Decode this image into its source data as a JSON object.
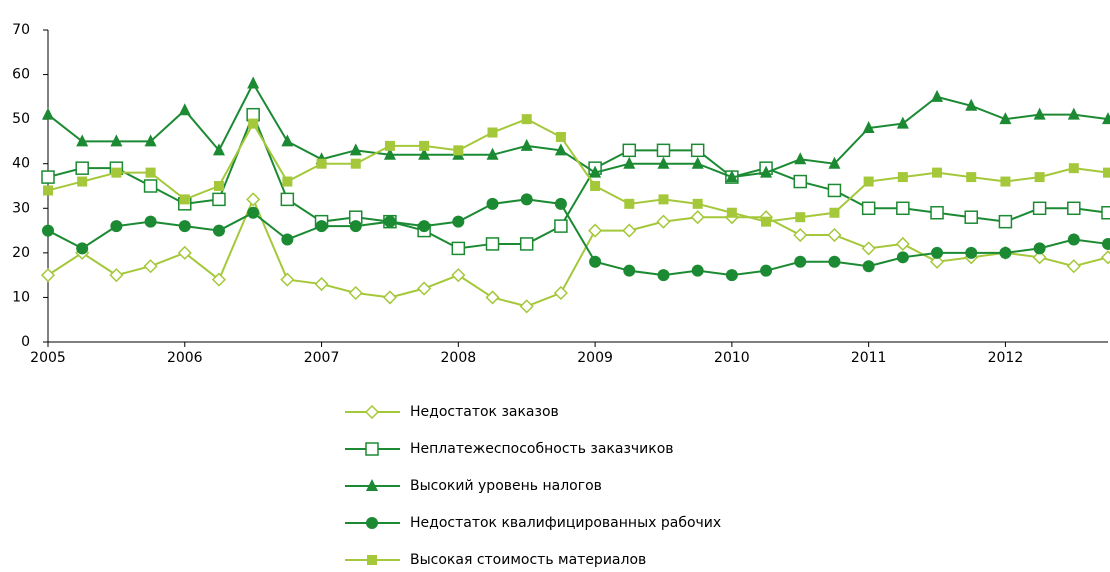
{
  "chart_data": {
    "type": "line",
    "x": [
      2005,
      2005.25,
      2005.5,
      2005.75,
      2006,
      2006.25,
      2006.5,
      2006.75,
      2007,
      2007.25,
      2007.5,
      2007.75,
      2008,
      2008.25,
      2008.5,
      2008.75,
      2009,
      2009.25,
      2009.5,
      2009.75,
      2010,
      2010.25,
      2010.5,
      2010.75,
      2011,
      2011.25,
      2011.5,
      2011.75,
      2012,
      2012.25,
      2012.5,
      2012.75
    ],
    "series": [
      {
        "name": "Недостаток заказов",
        "color": "#a4c83a",
        "marker": "diamond-open",
        "values": [
          15,
          20,
          15,
          17,
          20,
          14,
          32,
          14,
          13,
          11,
          10,
          12,
          15,
          10,
          8,
          11,
          25,
          25,
          27,
          28,
          28,
          28,
          24,
          24,
          21,
          22,
          18,
          19,
          20,
          19,
          17,
          19
        ]
      },
      {
        "name": "Неплатежеспособность заказчиков",
        "color": "#1b8a32",
        "marker": "square-open",
        "values": [
          37,
          39,
          39,
          35,
          31,
          32,
          51,
          32,
          27,
          28,
          27,
          25,
          21,
          22,
          22,
          26,
          39,
          43,
          43,
          43,
          37,
          39,
          36,
          34,
          30,
          30,
          29,
          28,
          27,
          30,
          30,
          29
        ]
      },
      {
        "name": "Высокий уровень налогов",
        "color": "#1b8a32",
        "marker": "triangle",
        "values": [
          51,
          45,
          45,
          45,
          52,
          43,
          58,
          45,
          41,
          43,
          42,
          42,
          42,
          42,
          44,
          43,
          38,
          40,
          40,
          40,
          37,
          38,
          41,
          40,
          48,
          49,
          55,
          53,
          50,
          51,
          51,
          50
        ]
      },
      {
        "name": "Недостаток квалифицированных рабочих",
        "color": "#1b8a32",
        "marker": "circle",
        "values": [
          25,
          21,
          26,
          27,
          26,
          25,
          29,
          23,
          26,
          26,
          27,
          26,
          27,
          31,
          32,
          31,
          18,
          16,
          15,
          16,
          15,
          16,
          18,
          18,
          17,
          19,
          20,
          20,
          20,
          21,
          23,
          22
        ]
      },
      {
        "name": "Высокая стоимость материалов",
        "color": "#a4c83a",
        "marker": "square",
        "values": [
          34,
          36,
          38,
          38,
          32,
          35,
          49,
          36,
          40,
          40,
          44,
          44,
          43,
          47,
          50,
          46,
          35,
          31,
          32,
          31,
          29,
          27,
          28,
          29,
          36,
          37,
          38,
          37,
          36,
          37,
          39,
          38
        ]
      }
    ],
    "xlim": [
      2005,
      2012.75
    ],
    "xticks": [
      2005,
      2006,
      2007,
      2008,
      2009,
      2010,
      2011,
      2012
    ],
    "ylim": [
      0,
      70
    ],
    "yticks": [
      0,
      10,
      20,
      30,
      40,
      50,
      60,
      70
    ],
    "grid": false,
    "legend": "bottom"
  }
}
